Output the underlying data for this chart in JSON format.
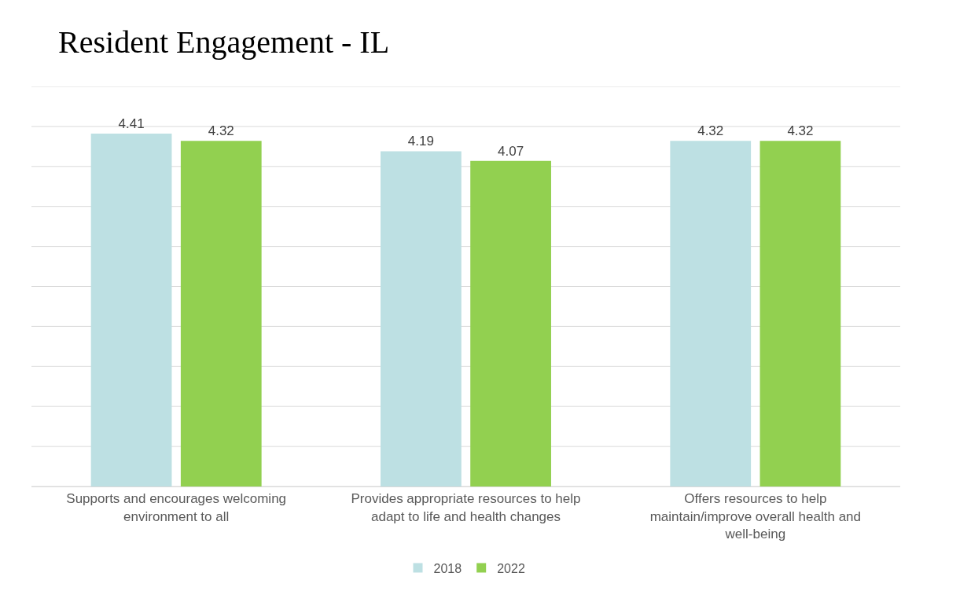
{
  "chart_data": {
    "type": "bar",
    "title": "Resident Engagement - IL",
    "categories": [
      "Supports and encourages welcoming environment to all",
      "Provides appropriate resources to help adapt to life and health changes",
      "Offers resources to help maintain/improve overall health and well-being"
    ],
    "series": [
      {
        "name": "2018",
        "color": "#bde0e3",
        "values": [
          4.41,
          4.19,
          4.32
        ]
      },
      {
        "name": "2022",
        "color": "#92d050",
        "values": [
          4.32,
          4.07,
          4.32
        ]
      }
    ],
    "ylim": [
      0,
      5
    ],
    "yticks": [
      {
        "value": 0,
        "label": null
      },
      {
        "value": 0.5,
        "label": null
      },
      {
        "value": 1,
        "label": null
      },
      {
        "value": 1.5,
        "label": null
      },
      {
        "value": 2,
        "label": null
      },
      {
        "value": 2.5,
        "label": null
      },
      {
        "value": 3,
        "label": null
      },
      {
        "value": 3.5,
        "label": null
      },
      {
        "value": 4,
        "label": null
      },
      {
        "value": 4.5,
        "label": null
      },
      {
        "value": 5,
        "label": null
      }
    ],
    "tick_labels": "x",
    "grid": "y",
    "data_labels": true,
    "legend": "bottom"
  }
}
